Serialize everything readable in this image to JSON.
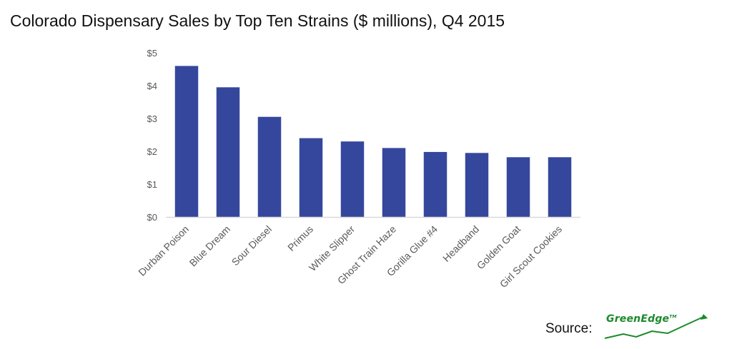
{
  "chart_data": {
    "type": "bar",
    "title": "Colorado Dispensary Sales by Top Ten Strains ($ millions), Q4 2015",
    "categories": [
      "Durban Poison",
      "Blue Dream",
      "Sour Diesel",
      "Primus",
      "White Slipper",
      "Ghost Train Haze",
      "Gorilla Glue #4",
      "Headband",
      "Golden Goat",
      "Girl Scout Cookies"
    ],
    "values": [
      4.6,
      3.95,
      3.05,
      2.4,
      2.3,
      2.1,
      1.98,
      1.95,
      1.82,
      1.82
    ],
    "ylim": [
      0,
      5
    ],
    "yticks": [
      0,
      1,
      2,
      3,
      4,
      5
    ],
    "ytick_labels": [
      "$0",
      "$1",
      "$2",
      "$3",
      "$4",
      "$5"
    ],
    "xlabel": "",
    "ylabel": "",
    "grid": false,
    "bar_color": "#35479d",
    "axis_color": "#d9d9d9"
  },
  "source": {
    "label": "Source:",
    "logo_text": "GreenEdge",
    "logo_mark": "TM"
  }
}
